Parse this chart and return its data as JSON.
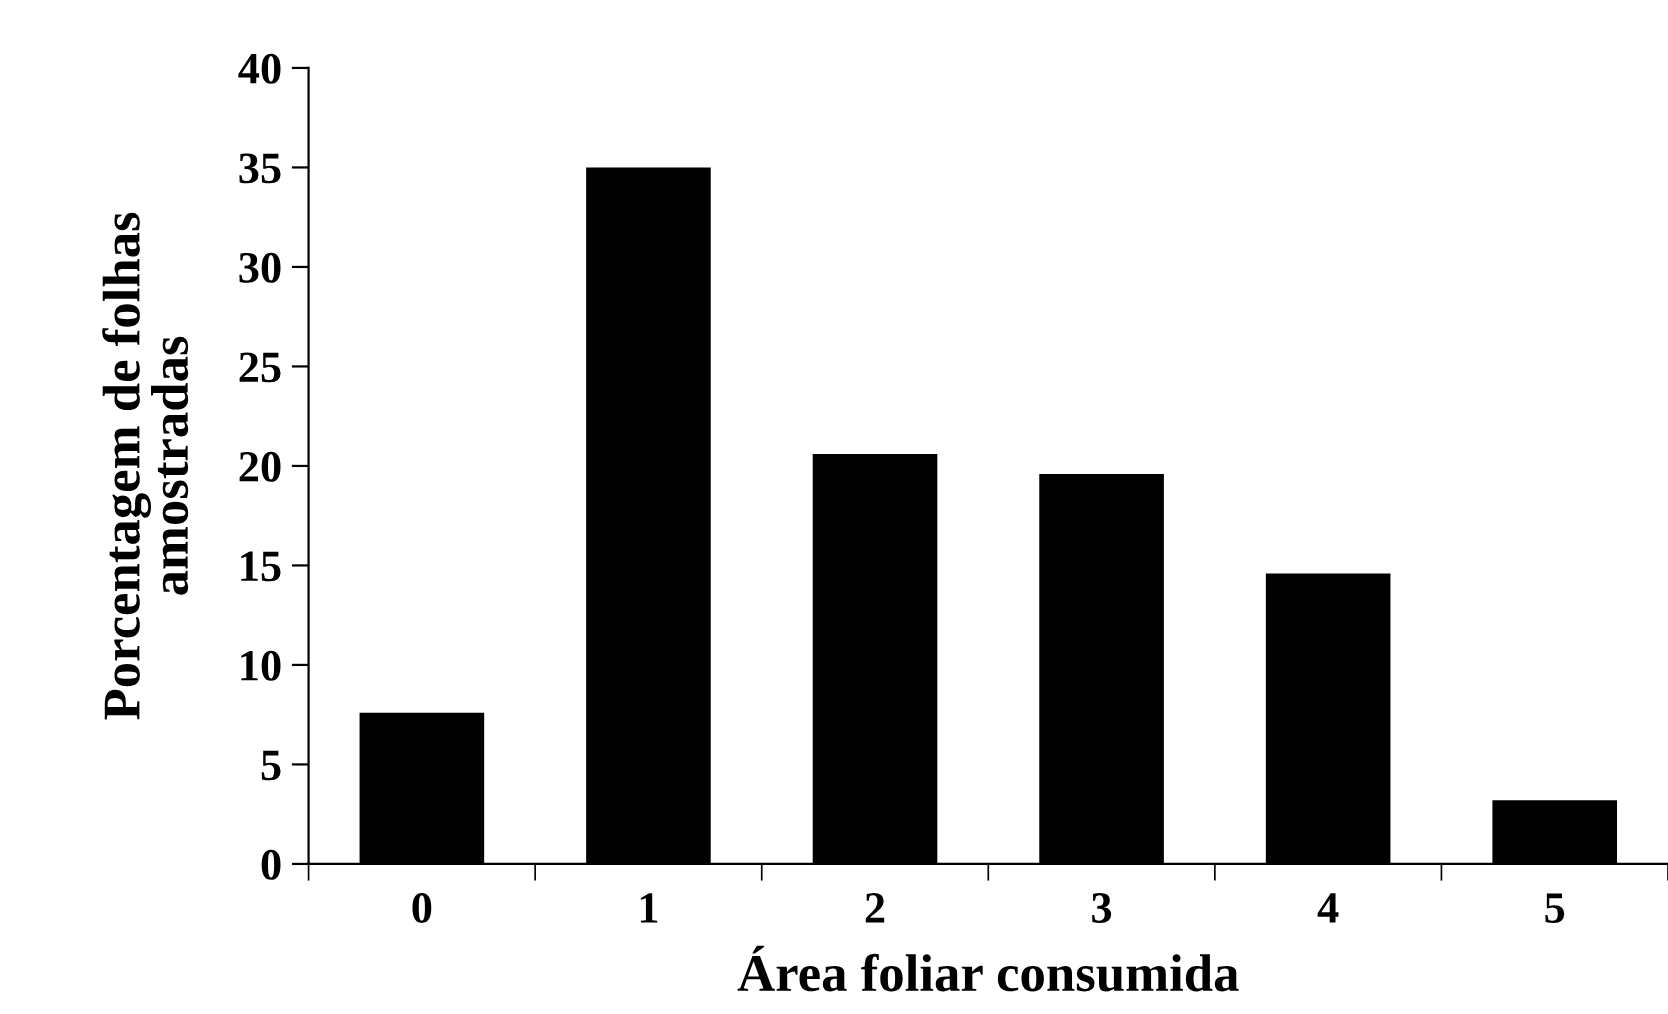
{
  "chart_data": {
    "type": "bar",
    "xlabel": "Área foliar consumida",
    "ylabel": "Porcentagem de folhas\namostradas",
    "categories": [
      "0",
      "1",
      "2",
      "3",
      "4",
      "5"
    ],
    "values": [
      7.6,
      35.0,
      20.6,
      19.6,
      14.6,
      3.2
    ],
    "color": "#000000",
    "ylim": [
      0,
      40
    ],
    "yticks": [
      0,
      5,
      10,
      15,
      20,
      25,
      30,
      35,
      40
    ],
    "grid": false,
    "legend": false
  }
}
